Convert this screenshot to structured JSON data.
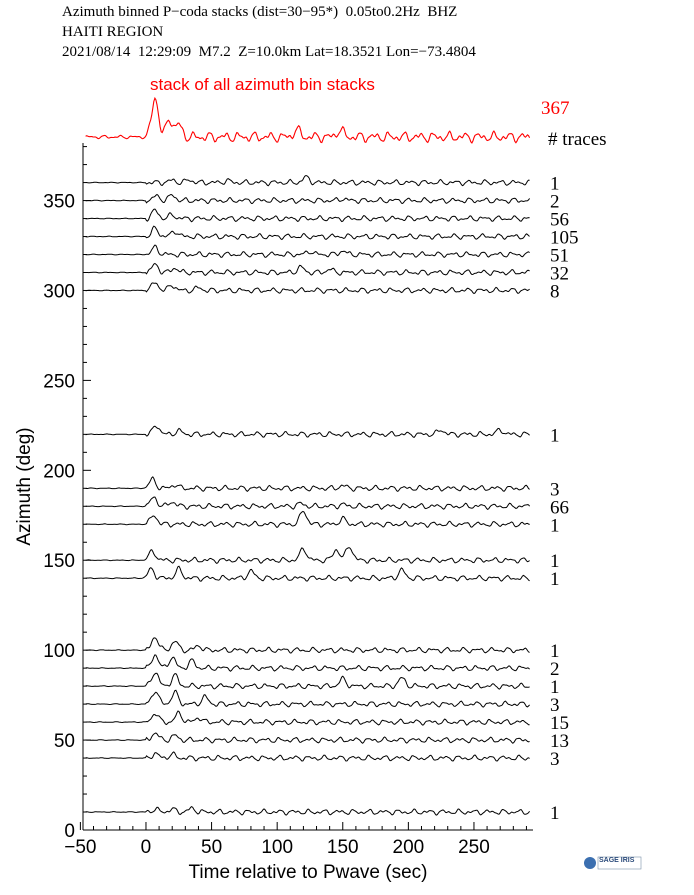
{
  "header": {
    "line1": "Azimuth binned P−coda stacks (dist=30−95*)  0.05to0.2Hz  BHZ",
    "line2": "HAITI REGION",
    "line3": "2021/08/14  12:29:09  M7.2  Z=10.0km Lat=18.3521 Lon=−73.4804"
  },
  "logo_text": "SAGE IRIS",
  "colors": {
    "stack": "#ff0000",
    "traces": "#000000",
    "axis": "#000000"
  },
  "chart_data": {
    "type": "line",
    "xlabel": "Time relative to Pwave (sec)",
    "ylabel": "Azimuth (deg)",
    "xlim": [
      -48,
      295
    ],
    "ylim": [
      0,
      382
    ],
    "xticks": [
      -50,
      0,
      50,
      100,
      150,
      200,
      250
    ],
    "yticks": [
      0,
      50,
      100,
      150,
      200,
      250,
      300,
      350
    ],
    "stack": {
      "label": "stack of all azimuth bin stacks",
      "trace_count": "367",
      "peaks": [
        {
          "t": 7,
          "a": 1.0
        },
        {
          "t": 18,
          "a": 0.45
        },
        {
          "t": 25,
          "a": 0.3
        },
        {
          "t": 115,
          "a": 0.18
        },
        {
          "t": 148,
          "a": 0.18
        }
      ]
    },
    "count_header": "# traces",
    "series": [
      {
        "azimuth": 360,
        "count": "1",
        "peaks": [
          {
            "t": 20,
            "a": 0.25
          },
          {
            "t": 33,
            "a": 0.3
          },
          {
            "t": 62,
            "a": 0.2
          },
          {
            "t": 122,
            "a": 0.6
          }
        ]
      },
      {
        "azimuth": 350,
        "count": "2",
        "peaks": [
          {
            "t": 8,
            "a": 0.5
          },
          {
            "t": 20,
            "a": 0.6
          },
          {
            "t": 150,
            "a": 0.2
          }
        ]
      },
      {
        "azimuth": 340,
        "count": "56",
        "peaks": [
          {
            "t": 7,
            "a": 0.9
          },
          {
            "t": 20,
            "a": 0.4
          }
        ]
      },
      {
        "azimuth": 330,
        "count": "105",
        "peaks": [
          {
            "t": 7,
            "a": 0.9
          },
          {
            "t": 22,
            "a": 0.6
          }
        ]
      },
      {
        "azimuth": 320,
        "count": "51",
        "peaks": [
          {
            "t": 7,
            "a": 0.8
          },
          {
            "t": 125,
            "a": 0.35
          },
          {
            "t": 150,
            "a": 0.4
          }
        ]
      },
      {
        "azimuth": 310,
        "count": "32",
        "peaks": [
          {
            "t": 7,
            "a": 0.9
          },
          {
            "t": 22,
            "a": 0.5
          },
          {
            "t": 118,
            "a": 0.6
          },
          {
            "t": 140,
            "a": 0.35
          }
        ]
      },
      {
        "azimuth": 300,
        "count": "8",
        "peaks": [
          {
            "t": 7,
            "a": 0.9
          },
          {
            "t": 20,
            "a": 0.6
          },
          {
            "t": 40,
            "a": 0.3
          }
        ]
      },
      {
        "azimuth": 220,
        "count": "1",
        "peaks": [
          {
            "t": 8,
            "a": 1.0
          },
          {
            "t": 25,
            "a": 0.4
          },
          {
            "t": 225,
            "a": 0.5
          },
          {
            "t": 270,
            "a": 0.5
          }
        ]
      },
      {
        "azimuth": 190,
        "count": "3",
        "peaks": [
          {
            "t": 5,
            "a": 1.0
          },
          {
            "t": 22,
            "a": 0.4
          },
          {
            "t": 150,
            "a": 0.3
          }
        ]
      },
      {
        "azimuth": 180,
        "count": "66",
        "peaks": [
          {
            "t": 6,
            "a": 1.0
          },
          {
            "t": 20,
            "a": 0.5
          },
          {
            "t": 118,
            "a": 0.3
          },
          {
            "t": 150,
            "a": 0.2
          }
        ]
      },
      {
        "azimuth": 170,
        "count": "1",
        "peaks": [
          {
            "t": 6,
            "a": 1.0
          },
          {
            "t": 120,
            "a": 1.5
          },
          {
            "t": 150,
            "a": 0.6
          }
        ]
      },
      {
        "azimuth": 150,
        "count": "1",
        "peaks": [
          {
            "t": 5,
            "a": 1.0
          },
          {
            "t": 120,
            "a": 1.3
          },
          {
            "t": 145,
            "a": 1.2
          },
          {
            "t": 155,
            "a": 1.6
          }
        ]
      },
      {
        "azimuth": 140,
        "count": "1",
        "peaks": [
          {
            "t": 4,
            "a": 1.0
          },
          {
            "t": 25,
            "a": 1.0
          },
          {
            "t": 80,
            "a": 0.8
          },
          {
            "t": 195,
            "a": 0.9
          }
        ]
      },
      {
        "azimuth": 100,
        "count": "1",
        "peaks": [
          {
            "t": 7,
            "a": 1.5
          },
          {
            "t": 22,
            "a": 1.0
          },
          {
            "t": 40,
            "a": 0.5
          }
        ]
      },
      {
        "azimuth": 90,
        "count": "2",
        "peaks": [
          {
            "t": 7,
            "a": 1.5
          },
          {
            "t": 20,
            "a": 1.2
          },
          {
            "t": 35,
            "a": 0.8
          }
        ]
      },
      {
        "azimuth": 80,
        "count": "1",
        "peaks": [
          {
            "t": 7,
            "a": 1.6
          },
          {
            "t": 22,
            "a": 1.2
          },
          {
            "t": 150,
            "a": 0.8
          },
          {
            "t": 195,
            "a": 0.9
          }
        ]
      },
      {
        "azimuth": 70,
        "count": "3",
        "peaks": [
          {
            "t": 7,
            "a": 1.5
          },
          {
            "t": 22,
            "a": 1.3
          },
          {
            "t": 45,
            "a": 0.8
          }
        ]
      },
      {
        "azimuth": 60,
        "count": "15",
        "peaks": [
          {
            "t": 7,
            "a": 1.0
          },
          {
            "t": 25,
            "a": 1.0
          },
          {
            "t": 40,
            "a": 0.5
          }
        ]
      },
      {
        "azimuth": 50,
        "count": "13",
        "peaks": [
          {
            "t": 7,
            "a": 0.8
          },
          {
            "t": 22,
            "a": 0.5
          }
        ]
      },
      {
        "azimuth": 40,
        "count": "3",
        "peaks": [
          {
            "t": 7,
            "a": 0.5
          },
          {
            "t": 20,
            "a": 0.4
          }
        ]
      },
      {
        "azimuth": 10,
        "count": "1",
        "peaks": [
          {
            "t": 7,
            "a": 0.3
          },
          {
            "t": 20,
            "a": 0.3
          },
          {
            "t": 35,
            "a": 0.4
          }
        ]
      }
    ]
  }
}
